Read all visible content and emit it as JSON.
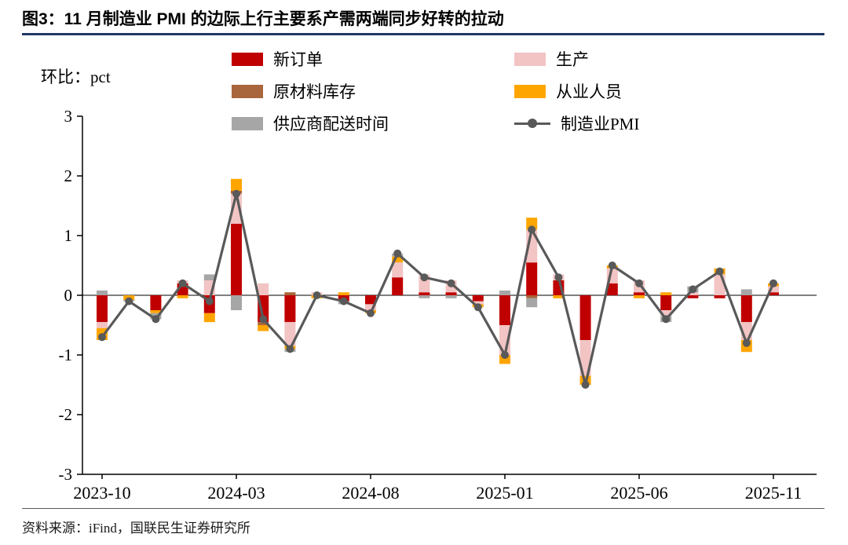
{
  "title": "图3：11 月制造业 PMI 的边际上行主要系产需两端同步好转的拉动",
  "unit_label": "环比：pct",
  "source": "资料来源：iFind，国联民生证券研究所",
  "colors": {
    "new_orders": "#C00000",
    "production": "#F2C4C4",
    "raw_materials": "#A9653B",
    "employment": "#FFA500",
    "supplier_delivery": "#A6A6A6",
    "pmi_line": "#595959",
    "title_rule": "#1F3864",
    "axis": "#000000"
  },
  "chart_data": {
    "type": "bar",
    "subtype": "stacked-bar-with-line",
    "title": "图3：11 月制造业 PMI 的边际上行主要系产需两端同步好转的拉动",
    "ylabel": "环比：pct",
    "ylim": [
      -3,
      3
    ],
    "yticks": [
      3,
      2,
      1,
      0,
      -1,
      -2,
      -3
    ],
    "grid": false,
    "legend_position": "top",
    "x": [
      "2023-10",
      "2023-11",
      "2023-12",
      "2024-01",
      "2024-02",
      "2024-03",
      "2024-04",
      "2024-05",
      "2024-06",
      "2024-07",
      "2024-08",
      "2024-09",
      "2024-10",
      "2024-11",
      "2024-12",
      "2025-01",
      "2025-02",
      "2025-03",
      "2025-04",
      "2025-05",
      "2025-06",
      "2025-07",
      "2025-08",
      "2025-09",
      "2025-10",
      "2025-11"
    ],
    "x_tick_labels": [
      "2023-10",
      "2024-03",
      "2024-08",
      "2025-01",
      "2025-06",
      "2025-11"
    ],
    "series": [
      {
        "name": "新订单",
        "type": "bar",
        "color_key": "new_orders",
        "values": [
          -0.45,
          0,
          -0.25,
          0.2,
          -0.3,
          1.2,
          -0.45,
          -0.45,
          0,
          -0.1,
          -0.15,
          0.3,
          0.05,
          0.05,
          -0.1,
          -0.5,
          0.55,
          0.25,
          -0.75,
          0.2,
          0.05,
          -0.25,
          -0.05,
          -0.05,
          -0.45,
          0.05
        ]
      },
      {
        "name": "生产",
        "type": "bar",
        "color_key": "production",
        "values": [
          -0.1,
          0,
          0,
          0.05,
          0.25,
          0.5,
          0.2,
          -0.4,
          0.05,
          0,
          -0.1,
          0.25,
          0.3,
          0.2,
          -0.05,
          -0.5,
          0.55,
          0.1,
          -0.6,
          0.25,
          0.2,
          -0.1,
          0.05,
          0.35,
          -0.3,
          0.1
        ]
      },
      {
        "name": "原材料库存",
        "type": "bar",
        "color_key": "raw_materials",
        "values": [
          0,
          0,
          0,
          0,
          0,
          0.05,
          -0.05,
          0.05,
          0,
          0,
          0,
          0,
          0,
          0,
          0,
          0,
          -0.05,
          0,
          0,
          0,
          0,
          0,
          0,
          0,
          0,
          0
        ]
      },
      {
        "name": "从业人员",
        "type": "bar",
        "color_key": "employment",
        "values": [
          -0.2,
          -0.08,
          -0.05,
          -0.05,
          -0.15,
          0.2,
          -0.1,
          -0.05,
          -0.05,
          0.05,
          -0.05,
          0.1,
          0,
          0,
          -0.05,
          -0.15,
          0.2,
          -0.05,
          -0.15,
          0.05,
          -0.05,
          0.05,
          0,
          0.1,
          -0.2,
          0.05
        ]
      },
      {
        "name": "供应商配送时间",
        "type": "bar",
        "color_key": "supplier_delivery",
        "values": [
          0.08,
          -0.02,
          -0.1,
          0,
          0.1,
          -0.25,
          0,
          -0.05,
          0,
          -0.05,
          0,
          0.05,
          -0.05,
          -0.05,
          0,
          0.08,
          -0.15,
          0,
          0,
          0,
          0,
          -0.1,
          0.1,
          0,
          0.1,
          0
        ]
      },
      {
        "name": "制造业PMI",
        "type": "line",
        "color_key": "pmi_line",
        "values": [
          -0.7,
          -0.1,
          -0.4,
          0.2,
          -0.1,
          1.7,
          -0.4,
          -0.9,
          0,
          -0.1,
          -0.3,
          0.7,
          0.3,
          0.2,
          -0.2,
          -1.0,
          1.1,
          0.3,
          -1.5,
          0.5,
          0.2,
          -0.4,
          0.1,
          0.4,
          -0.8,
          0.2
        ]
      }
    ]
  }
}
